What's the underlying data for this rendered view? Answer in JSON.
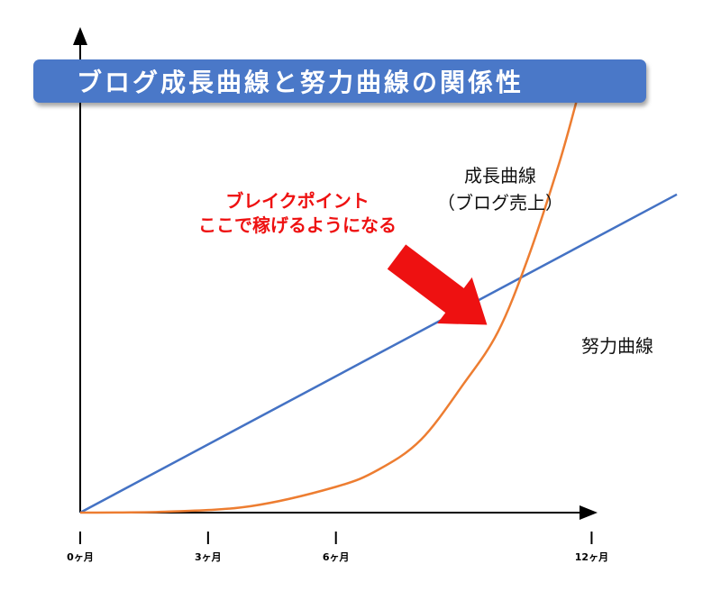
{
  "chart_data": {
    "type": "line",
    "title": "ブログ成長曲線と努力曲線の関係性",
    "xlabel": "",
    "ylabel": "",
    "x_ticks": [
      {
        "value": 0,
        "label": "0ヶ月"
      },
      {
        "value": 3,
        "label": "3ヶ月"
      },
      {
        "value": 6,
        "label": "6ヶ月"
      },
      {
        "value": 12,
        "label": "12ヶ月"
      }
    ],
    "xlim": [
      0,
      14
    ],
    "ylim": [
      0,
      110
    ],
    "grid": false,
    "legend": "none",
    "series": [
      {
        "name": "努力曲線",
        "color": "#4472c4",
        "x": [
          0,
          14
        ],
        "y": [
          0,
          74
        ]
      },
      {
        "name": "成長曲線（ブログ売上）",
        "color": "#ed7d31",
        "x": [
          0,
          2,
          4,
          6,
          7,
          8,
          9,
          9.8,
          10.5,
          11.2,
          11.6,
          11.8
        ],
        "y": [
          0,
          0.2,
          1.5,
          6,
          10,
          17,
          30,
          42,
          59,
          80,
          94,
          102
        ]
      }
    ],
    "annotations": {
      "growth_label": [
        "成長曲線",
        "（ブログ売上）"
      ],
      "effort_label": "努力曲線",
      "breakpoint_label": [
        "ブレイクポイント",
        "ここで稼げるようになる"
      ],
      "breakpoint_point": {
        "x": 9.8,
        "y": 42
      },
      "breakpoint_color": "#ee1111"
    }
  }
}
